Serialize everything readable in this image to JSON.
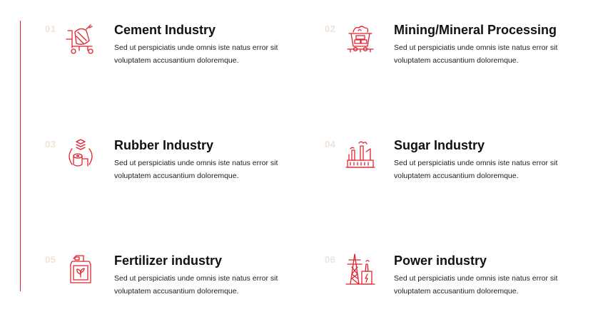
{
  "theme": {
    "accent": "#e0222e",
    "number_color": "#f0e2d6"
  },
  "items": [
    {
      "number": "01",
      "title": "Cement Industry",
      "description": "Sed ut perspiciatis unde omnis iste natus error sit voluptatem accusantium doloremque.",
      "icon": "cement-mixer-icon"
    },
    {
      "number": "02",
      "title": "Mining/Mineral Processing",
      "description": "Sed ut perspiciatis unde omnis iste natus error sit voluptatem accusantium doloremque.",
      "icon": "mine-cart-icon"
    },
    {
      "number": "03",
      "title": "Rubber Industry",
      "description": "Sed ut perspiciatis unde omnis iste natus error sit voluptatem accusantium doloremque.",
      "icon": "rubber-roll-icon"
    },
    {
      "number": "04",
      "title": "Sugar Industry",
      "description": "Sed ut perspiciatis unde omnis iste natus error sit voluptatem accusantium doloremque.",
      "icon": "factory-icon"
    },
    {
      "number": "05",
      "title": "Fertilizer industry",
      "description": "Sed ut perspiciatis unde omnis iste natus error sit voluptatem accusantium doloremque.",
      "icon": "fertilizer-canister-icon"
    },
    {
      "number": "06",
      "title": "Power industry",
      "description": "Sed ut perspiciatis unde omnis iste natus error sit voluptatem accusantium doloremque.",
      "icon": "power-tower-icon"
    }
  ]
}
